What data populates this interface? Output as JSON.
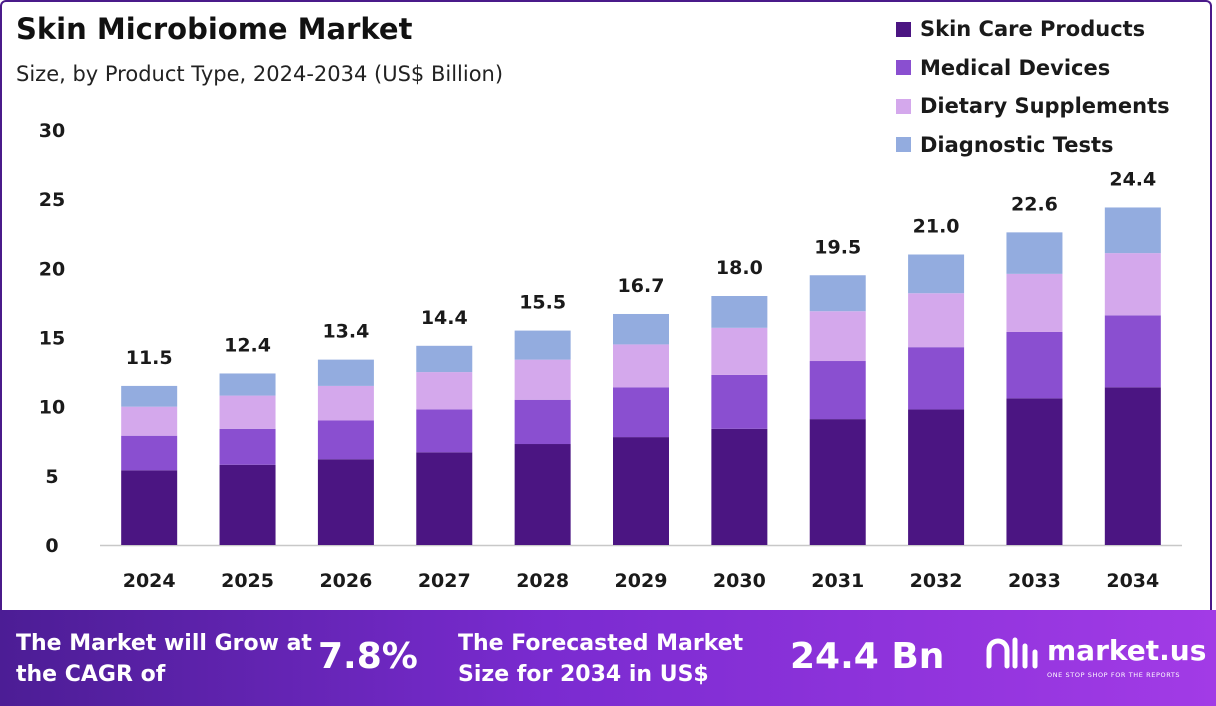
{
  "header": {
    "title": "Skin Microbiome Market",
    "subtitle": "Size, by Product Type, 2024-2034 (US$ Billion)"
  },
  "legend": [
    {
      "label": "Skin Care Products",
      "color": "#4b1582"
    },
    {
      "label": "Medical Devices",
      "color": "#8a4fd0"
    },
    {
      "label": "Dietary Supplements",
      "color": "#d4a8ec"
    },
    {
      "label": "Diagnostic Tests",
      "color": "#93acdf"
    }
  ],
  "chart_data": {
    "type": "bar",
    "stacked": true,
    "categories": [
      "2024",
      "2025",
      "2026",
      "2027",
      "2028",
      "2029",
      "2030",
      "2031",
      "2032",
      "2033",
      "2034"
    ],
    "series": [
      {
        "name": "Skin Care Products",
        "color": "#4b1582",
        "values": [
          5.4,
          5.8,
          6.2,
          6.7,
          7.3,
          7.8,
          8.4,
          9.1,
          9.8,
          10.6,
          11.4
        ]
      },
      {
        "name": "Medical Devices",
        "color": "#8a4fd0",
        "values": [
          2.5,
          2.6,
          2.8,
          3.1,
          3.2,
          3.6,
          3.9,
          4.2,
          4.5,
          4.8,
          5.2
        ]
      },
      {
        "name": "Dietary Supplements",
        "color": "#d4a8ec",
        "values": [
          2.1,
          2.4,
          2.5,
          2.7,
          2.9,
          3.1,
          3.4,
          3.6,
          3.9,
          4.2,
          4.5
        ]
      },
      {
        "name": "Diagnostic Tests",
        "color": "#93acdf",
        "values": [
          1.5,
          1.6,
          1.9,
          1.9,
          2.1,
          2.2,
          2.3,
          2.6,
          2.8,
          3.0,
          3.3
        ]
      }
    ],
    "totals": [
      "11.5",
      "12.4",
      "13.4",
      "14.4",
      "15.5",
      "16.7",
      "18.0",
      "19.5",
      "21.0",
      "22.6",
      "24.4"
    ],
    "yticks": [
      0,
      5,
      10,
      15,
      20,
      25,
      30
    ],
    "ylim": [
      0,
      30
    ],
    "grid": false,
    "legend_position": "top-right"
  },
  "footer": {
    "cagr_label": "The Market will Grow at the CAGR of",
    "cagr_value": "7.8%",
    "forecast_label": "The Forecasted Market Size for 2034 in US$",
    "forecast_value": "24.4 Bn",
    "brand_name": "market.us",
    "brand_tagline": "ONE STOP SHOP FOR THE REPORTS",
    "brand_icon": "market-us-logo-icon"
  }
}
